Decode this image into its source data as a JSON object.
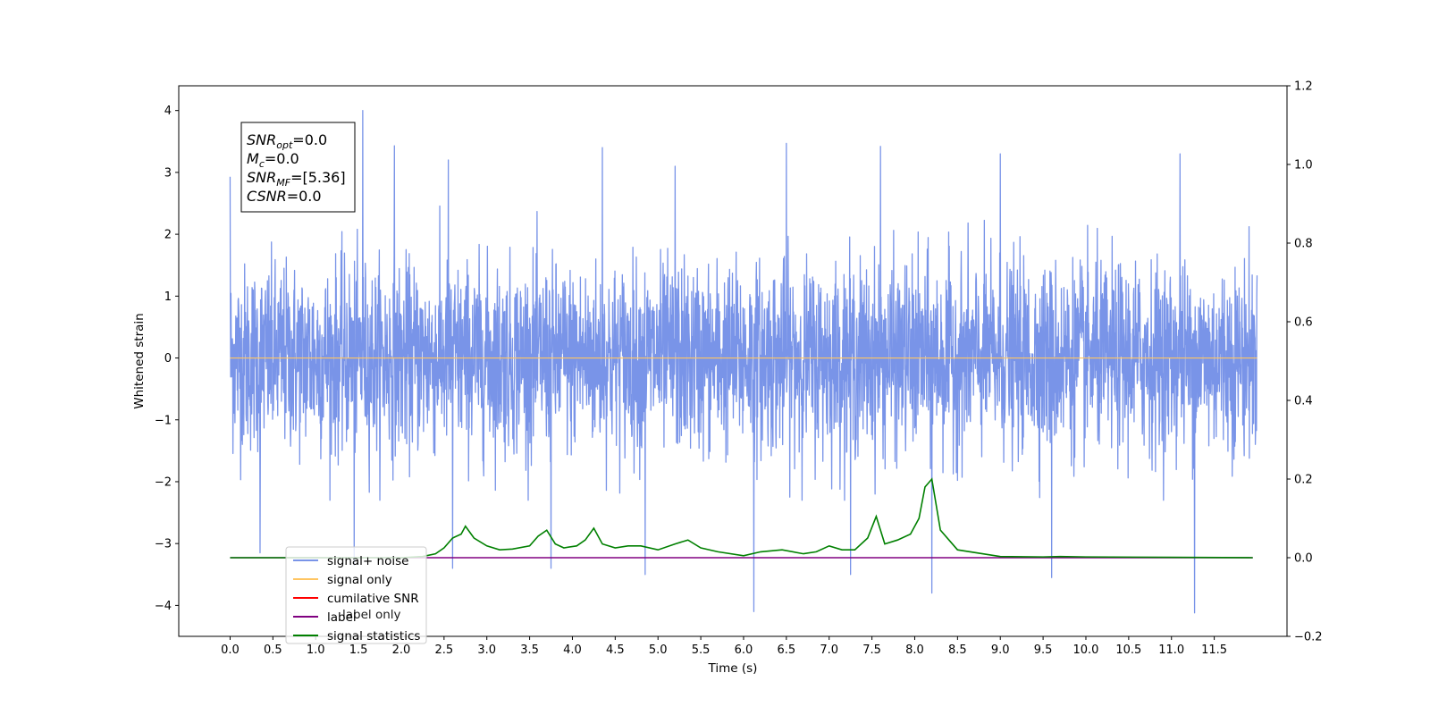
{
  "chart_data": {
    "type": "line",
    "xlabel": "Time (s)",
    "ylabel": "Whitened strain",
    "xlim": [
      -0.6,
      12.35
    ],
    "ylim": [
      -4.5,
      4.4
    ],
    "y2lim": [
      -0.2,
      1.2
    ],
    "x_ticks": [
      0.0,
      0.5,
      1.0,
      1.5,
      2.0,
      2.5,
      3.0,
      3.5,
      4.0,
      4.5,
      5.0,
      5.5,
      6.0,
      6.5,
      7.0,
      7.5,
      8.0,
      8.5,
      9.0,
      9.5,
      10.0,
      10.5,
      11.0,
      11.5
    ],
    "x_tick_labels": [
      "0.0",
      "0.5",
      "1.0",
      "1.5",
      "2.0",
      "2.5",
      "3.0",
      "3.5",
      "4.0",
      "4.5",
      "5.0",
      "5.5",
      "6.0",
      "6.5",
      "7.0",
      "7.5",
      "8.0",
      "8.5",
      "9.0",
      "9.5",
      "10.0",
      "10.5",
      "11.0",
      "11.5"
    ],
    "y_ticks": [
      -4,
      -3,
      -2,
      -1,
      0,
      1,
      2,
      3,
      4
    ],
    "y_tick_labels": [
      "−4",
      "−3",
      "−2",
      "−1",
      "0",
      "1",
      "2",
      "3",
      "4"
    ],
    "y2_ticks": [
      -0.2,
      0.0,
      0.2,
      0.4,
      0.6,
      0.8,
      1.0,
      1.2
    ],
    "y2_tick_labels": [
      "−0.2",
      "0.0",
      "0.2",
      "0.4",
      "0.6",
      "0.8",
      "1.0",
      "1.2"
    ],
    "legend_position": "lower-left",
    "legend": [
      {
        "label": "signal+ noise",
        "color": "#7994e8"
      },
      {
        "label": "signal only",
        "color": "#ffc561"
      },
      {
        "label": "cumilative SNR",
        "color": "#ff0000"
      },
      {
        "label": "label",
        "color": "#800080"
      },
      {
        "label": "signal statistics",
        "color": "#008000"
      }
    ],
    "hidden_label": "label only",
    "info_box": {
      "lines": [
        {
          "main": "SNR",
          "sub": "opt",
          "rest": "=0.0"
        },
        {
          "main": "M",
          "sub": "c",
          "rest": "=0.0"
        },
        {
          "main": "SNR",
          "sub": "MF",
          "rest": "=[5.36]"
        },
        {
          "main": "CSNR",
          "sub": "",
          "rest": "=0.0"
        }
      ]
    },
    "series": [
      {
        "name": "signal+ noise",
        "axis": "left",
        "color": "#7994e8",
        "description_range": [
          0.0,
          12.0
        ],
        "noise_std": 0.75,
        "spikes": [
          [
            0.0,
            2.93
          ],
          [
            1.55,
            4.0
          ],
          [
            1.92,
            3.43
          ],
          [
            2.55,
            3.2
          ],
          [
            4.35,
            3.4
          ],
          [
            5.2,
            3.1
          ],
          [
            6.5,
            3.47
          ],
          [
            7.6,
            3.42
          ],
          [
            9.0,
            3.3
          ],
          [
            11.1,
            3.3
          ],
          [
            0.35,
            -3.15
          ],
          [
            1.45,
            -3.35
          ],
          [
            2.6,
            -3.4
          ],
          [
            3.75,
            -3.4
          ],
          [
            4.85,
            -3.5
          ],
          [
            6.12,
            -4.1
          ],
          [
            7.25,
            -3.5
          ],
          [
            8.2,
            -3.8
          ],
          [
            9.6,
            -3.55
          ],
          [
            11.27,
            -4.12
          ]
        ]
      },
      {
        "name": "signal only",
        "axis": "left",
        "color": "#ffc561",
        "x": [
          0.0,
          12.0
        ],
        "y": [
          0.0,
          0.0
        ]
      },
      {
        "name": "label",
        "axis": "right",
        "color": "#800080",
        "x": [
          0.0,
          11.95
        ],
        "y": [
          0.0,
          0.0
        ]
      },
      {
        "name": "signal statistics",
        "axis": "right",
        "color": "#008000",
        "x": [
          0.0,
          2.0,
          2.25,
          2.4,
          2.5,
          2.6,
          2.7,
          2.75,
          2.85,
          3.0,
          3.15,
          3.3,
          3.5,
          3.6,
          3.7,
          3.8,
          3.9,
          4.05,
          4.15,
          4.25,
          4.35,
          4.5,
          4.65,
          4.8,
          5.0,
          5.2,
          5.35,
          5.5,
          5.7,
          6.0,
          6.2,
          6.45,
          6.7,
          6.85,
          7.0,
          7.15,
          7.3,
          7.45,
          7.55,
          7.65,
          7.8,
          7.95,
          8.05,
          8.12,
          8.2,
          8.3,
          8.5,
          9.0,
          9.5,
          9.7,
          10.0,
          11.0,
          11.95
        ],
        "y": [
          0.0,
          0.0,
          0.003,
          0.01,
          0.025,
          0.05,
          0.06,
          0.08,
          0.05,
          0.03,
          0.02,
          0.022,
          0.03,
          0.055,
          0.07,
          0.035,
          0.025,
          0.03,
          0.045,
          0.075,
          0.035,
          0.025,
          0.03,
          0.03,
          0.02,
          0.035,
          0.045,
          0.025,
          0.015,
          0.005,
          0.015,
          0.02,
          0.01,
          0.015,
          0.03,
          0.02,
          0.02,
          0.05,
          0.105,
          0.035,
          0.045,
          0.06,
          0.1,
          0.18,
          0.2,
          0.07,
          0.02,
          0.003,
          0.002,
          0.003,
          0.002,
          0.001,
          0.0
        ]
      }
    ]
  }
}
